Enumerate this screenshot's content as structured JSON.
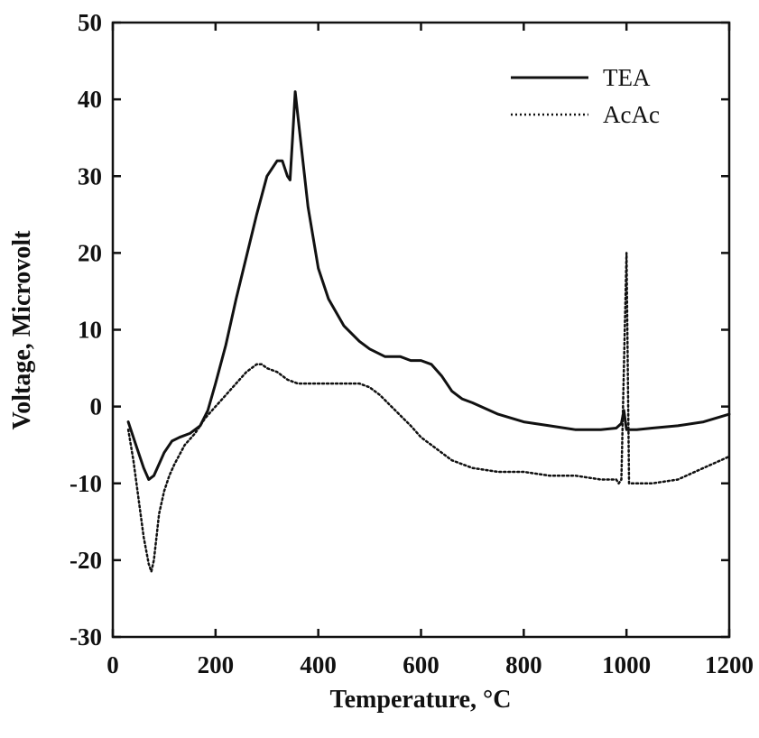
{
  "chart_data": {
    "type": "line",
    "xlabel": "Temperature, °C",
    "ylabel": "Voltage, Microvolt",
    "xlim": [
      0,
      1200
    ],
    "ylim": [
      -30,
      50
    ],
    "xticks": [
      0,
      200,
      400,
      600,
      800,
      1000,
      1200
    ],
    "yticks": [
      -30,
      -20,
      -10,
      0,
      10,
      20,
      30,
      40,
      50
    ],
    "grid": false,
    "legend_position": "top-right",
    "series": [
      {
        "name": "TEA",
        "style": "solid",
        "color": "#111111",
        "x": [
          30,
          45,
          60,
          70,
          80,
          90,
          100,
          115,
          130,
          150,
          170,
          185,
          200,
          220,
          240,
          260,
          280,
          300,
          320,
          330,
          340,
          345,
          350,
          355,
          360,
          370,
          380,
          400,
          420,
          450,
          480,
          500,
          530,
          560,
          580,
          600,
          620,
          640,
          660,
          680,
          700,
          750,
          800,
          850,
          900,
          950,
          980,
          990,
          995,
          1000,
          1020,
          1050,
          1100,
          1150,
          1200
        ],
        "y": [
          -2,
          -5,
          -8,
          -9.5,
          -9,
          -7.5,
          -6,
          -4.5,
          -4,
          -3.5,
          -2.5,
          -0.5,
          3,
          8,
          14,
          19.5,
          25,
          30,
          32,
          32,
          30,
          29.5,
          35,
          41,
          38,
          32,
          26,
          18,
          14,
          10.5,
          8.5,
          7.5,
          6.5,
          6.5,
          6,
          6,
          5.5,
          4,
          2,
          1,
          0.5,
          -1,
          -2,
          -2.5,
          -3,
          -3,
          -2.8,
          -2.2,
          -0.5,
          -3,
          -3,
          -2.8,
          -2.5,
          -2,
          -1
        ]
      },
      {
        "name": "AcAc",
        "style": "dotted",
        "color": "#111111",
        "x": [
          30,
          40,
          50,
          60,
          70,
          75,
          80,
          85,
          90,
          100,
          110,
          120,
          140,
          160,
          180,
          200,
          220,
          240,
          260,
          280,
          290,
          300,
          320,
          340,
          360,
          380,
          400,
          420,
          440,
          460,
          480,
          500,
          520,
          550,
          580,
          600,
          630,
          660,
          700,
          750,
          800,
          850,
          900,
          950,
          980,
          985,
          990,
          995,
          1000,
          1005,
          1010,
          1050,
          1100,
          1150,
          1200
        ],
        "y": [
          -3,
          -7,
          -12,
          -17,
          -20.5,
          -21.5,
          -20,
          -17,
          -14,
          -11,
          -9,
          -7.5,
          -5,
          -3.5,
          -1.5,
          0,
          1.5,
          3,
          4.5,
          5.5,
          5.5,
          5,
          4.5,
          3.5,
          3,
          3,
          3,
          3,
          3,
          3,
          3,
          2.5,
          1.5,
          -0.5,
          -2.5,
          -4,
          -5.5,
          -7,
          -8,
          -8.5,
          -8.5,
          -9,
          -9,
          -9.5,
          -9.5,
          -10,
          -9.5,
          5,
          20,
          -10,
          -10,
          -10,
          -9.5,
          -8,
          -6.5
        ]
      }
    ]
  }
}
